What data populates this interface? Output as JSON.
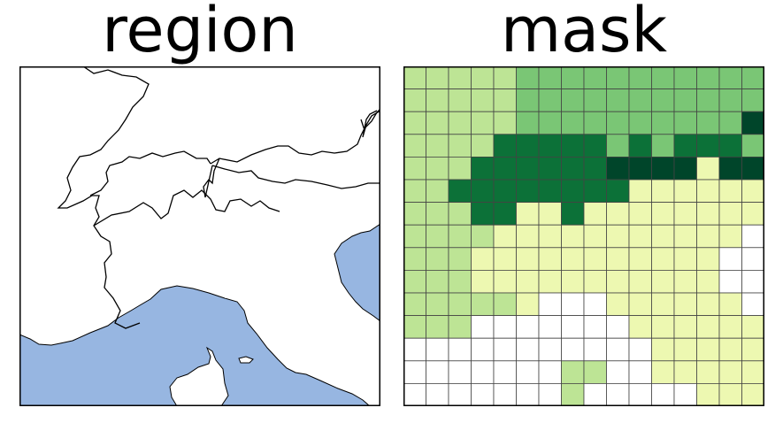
{
  "titles": {
    "region": "region",
    "mask": "mask"
  },
  "colors": {
    "sea": "#97b6e1",
    "land": "#ffffff",
    "border": "#000000",
    "grid_line": "#444444",
    "mask_levels": [
      "#ffffff",
      "#edf8b1",
      "#bde495",
      "#7ac675",
      "#0c7138",
      "#00452a"
    ]
  },
  "mask_grid": {
    "rows": 15,
    "cols": 16,
    "levels": [
      [
        2,
        2,
        2,
        2,
        2,
        3,
        3,
        3,
        3,
        3,
        3,
        3,
        3,
        3,
        3,
        3
      ],
      [
        2,
        2,
        2,
        2,
        2,
        3,
        3,
        3,
        3,
        3,
        3,
        3,
        3,
        3,
        3,
        3
      ],
      [
        2,
        2,
        2,
        2,
        2,
        3,
        3,
        3,
        3,
        3,
        3,
        3,
        3,
        3,
        3,
        5
      ],
      [
        2,
        2,
        2,
        2,
        4,
        4,
        4,
        4,
        4,
        3,
        4,
        3,
        4,
        4,
        4,
        3
      ],
      [
        2,
        2,
        2,
        4,
        4,
        4,
        4,
        4,
        4,
        5,
        5,
        5,
        5,
        1,
        5,
        5
      ],
      [
        2,
        2,
        4,
        4,
        4,
        4,
        4,
        4,
        4,
        4,
        1,
        1,
        1,
        1,
        1,
        1
      ],
      [
        2,
        2,
        2,
        4,
        4,
        1,
        1,
        4,
        1,
        1,
        1,
        1,
        1,
        1,
        1,
        1
      ],
      [
        2,
        2,
        2,
        2,
        1,
        1,
        1,
        1,
        1,
        1,
        1,
        1,
        1,
        1,
        1,
        0
      ],
      [
        2,
        2,
        2,
        1,
        1,
        1,
        1,
        1,
        1,
        1,
        1,
        1,
        1,
        1,
        0,
        0
      ],
      [
        2,
        2,
        2,
        1,
        1,
        1,
        1,
        1,
        1,
        1,
        1,
        1,
        1,
        1,
        0,
        0
      ],
      [
        2,
        2,
        2,
        2,
        2,
        1,
        0,
        0,
        0,
        1,
        1,
        1,
        1,
        1,
        1,
        0
      ],
      [
        2,
        2,
        2,
        0,
        0,
        0,
        0,
        0,
        0,
        0,
        1,
        1,
        1,
        1,
        1,
        1
      ],
      [
        0,
        0,
        0,
        0,
        0,
        0,
        0,
        0,
        0,
        0,
        0,
        1,
        1,
        1,
        1,
        1
      ],
      [
        0,
        0,
        0,
        0,
        0,
        0,
        0,
        2,
        2,
        0,
        0,
        1,
        1,
        1,
        1,
        1
      ],
      [
        0,
        0,
        0,
        0,
        0,
        0,
        0,
        2,
        0,
        0,
        0,
        0,
        0,
        1,
        1,
        1
      ]
    ]
  }
}
